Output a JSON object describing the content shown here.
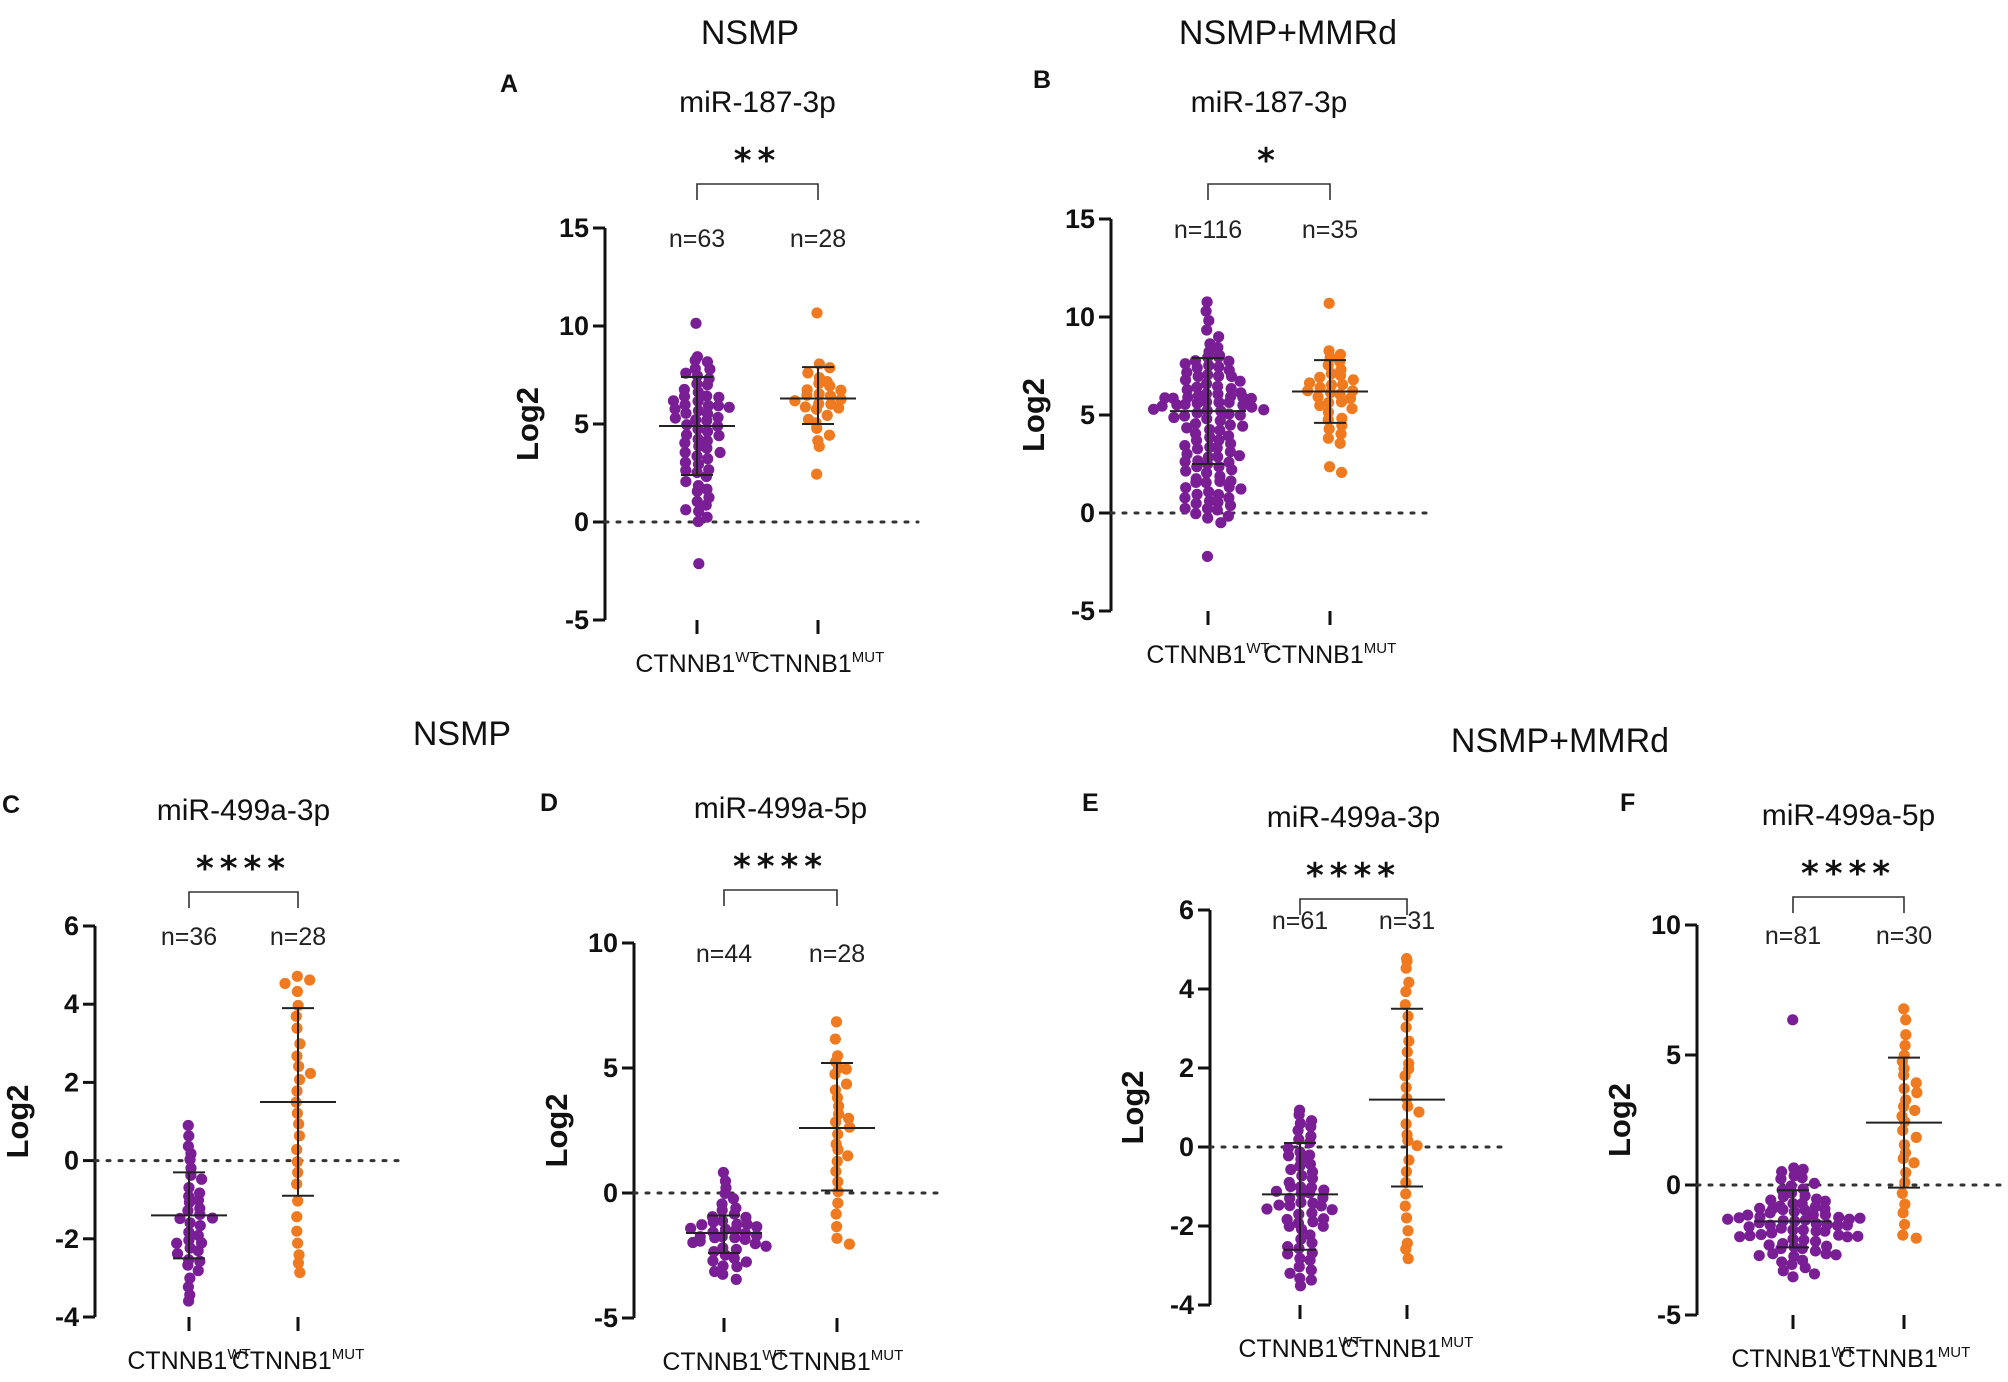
{
  "figure": {
    "section_titles": [
      "NSMP",
      "NSMP+MMRd",
      "NSMP",
      "NSMP+MMRd"
    ],
    "colors": {
      "wt": "#7a1e96",
      "mut": "#ef7a1f",
      "axis": "#111111"
    }
  },
  "chart_data": [
    {
      "type": "scatter",
      "panel": "A",
      "title": "miR-187-3p",
      "ylabel": "Log2",
      "ylim": [
        -5,
        15
      ],
      "yticks": [
        -5,
        0,
        5,
        10,
        15
      ],
      "grid": false,
      "reference_line": 0,
      "categories": [
        "CTNNB1",
        "CTNNB1"
      ],
      "category_superscripts": [
        "WT",
        "MUT"
      ],
      "n_labels": [
        "n=63",
        "n=28"
      ],
      "significance": "**",
      "series": [
        {
          "name": "CTNNB1 WT",
          "color": "#7a1e96",
          "mean": 4.9,
          "sd_low": 2.4,
          "sd_high": 7.4,
          "values": [
            10.2,
            -2.2,
            8.5,
            8.3,
            8.1,
            7.9,
            7.8,
            7.6,
            7.5,
            7.3,
            7.1,
            7.0,
            6.8,
            6.6,
            6.4,
            6.3,
            6.2,
            6.1,
            6.0,
            6.0,
            5.9,
            5.8,
            5.7,
            5.6,
            5.5,
            5.4,
            5.3,
            5.2,
            5.1,
            5.0,
            4.9,
            4.8,
            4.6,
            4.5,
            4.3,
            4.2,
            4.0,
            3.9,
            3.7,
            3.5,
            3.4,
            3.2,
            3.0,
            2.9,
            2.7,
            2.5,
            2.3,
            2.1,
            1.9,
            1.7,
            1.5,
            1.3,
            1.1,
            0.9,
            0.7,
            0.5,
            0.3,
            0.1,
            6.5,
            5.8,
            4.4,
            3.6,
            2.6
          ]
        },
        {
          "name": "CTNNB1 MUT",
          "color": "#ef7a1f",
          "mean": 6.3,
          "sd_low": 5.0,
          "sd_high": 7.9,
          "values": [
            10.7,
            2.4,
            8.0,
            7.8,
            7.6,
            7.4,
            7.2,
            7.0,
            6.9,
            6.8,
            6.7,
            6.6,
            6.5,
            6.4,
            6.3,
            6.2,
            6.1,
            6.0,
            5.9,
            5.8,
            5.7,
            5.5,
            5.3,
            5.0,
            4.8,
            4.5,
            4.2,
            3.8
          ]
        }
      ]
    },
    {
      "type": "scatter",
      "panel": "B",
      "title": "miR-187-3p",
      "ylabel": "Log2",
      "ylim": [
        -5,
        15
      ],
      "yticks": [
        -5,
        0,
        5,
        10,
        15
      ],
      "grid": false,
      "reference_line": 0,
      "categories": [
        "CTNNB1",
        "CTNNB1"
      ],
      "category_superscripts": [
        "WT",
        "MUT"
      ],
      "n_labels": [
        "n=116",
        "n=35"
      ],
      "significance": "*",
      "series": [
        {
          "name": "CTNNB1 WT",
          "color": "#7a1e96",
          "mean": 5.2,
          "sd_low": 2.5,
          "sd_high": 7.9,
          "values": [
            10.8,
            -2.2,
            10.3,
            9.8,
            9.4,
            9.0,
            8.7,
            8.5,
            8.3,
            8.1,
            8.0,
            7.9,
            7.8,
            7.7,
            7.6,
            7.5,
            7.4,
            7.3,
            7.2,
            7.1,
            7.0,
            6.9,
            6.8,
            6.7,
            6.6,
            6.5,
            6.4,
            6.3,
            6.2,
            6.1,
            6.0,
            6.0,
            5.9,
            5.9,
            5.8,
            5.8,
            5.7,
            5.7,
            5.6,
            5.6,
            5.5,
            5.5,
            5.4,
            5.4,
            5.3,
            5.3,
            5.2,
            5.2,
            5.1,
            5.1,
            5.0,
            5.0,
            4.9,
            4.8,
            4.7,
            4.6,
            4.5,
            4.4,
            4.3,
            4.2,
            4.1,
            4.0,
            3.9,
            3.8,
            3.7,
            3.6,
            3.5,
            3.4,
            3.3,
            3.2,
            3.1,
            3.0,
            2.9,
            2.8,
            2.7,
            2.6,
            2.5,
            2.4,
            2.3,
            2.2,
            2.1,
            2.0,
            1.9,
            1.8,
            1.7,
            1.6,
            1.5,
            1.4,
            1.3,
            1.2,
            1.1,
            1.0,
            0.9,
            0.8,
            0.7,
            0.6,
            0.5,
            0.4,
            0.3,
            0.2,
            0.1,
            0.0,
            -0.1,
            -0.3,
            -0.5,
            6.1,
            5.9,
            6.3,
            5.6,
            7.0,
            7.4,
            3.0,
            2.6,
            1.6,
            0.6,
            4.4
          ]
        },
        {
          "name": "CTNNB1 MUT",
          "color": "#ef7a1f",
          "mean": 6.2,
          "sd_low": 4.6,
          "sd_high": 7.8,
          "values": [
            10.7,
            2.1,
            2.4,
            3.5,
            8.3,
            8.1,
            7.9,
            7.7,
            7.5,
            7.3,
            7.1,
            7.0,
            6.9,
            6.8,
            6.7,
            6.6,
            6.5,
            6.4,
            6.3,
            6.2,
            6.1,
            6.0,
            5.9,
            5.8,
            5.7,
            5.6,
            5.5,
            5.3,
            5.1,
            4.9,
            4.7,
            4.5,
            4.3,
            4.0,
            3.8
          ]
        }
      ]
    },
    {
      "type": "scatter",
      "panel": "C",
      "title": "miR-499a-3p",
      "ylabel": "Log2",
      "ylim": [
        -4,
        6
      ],
      "yticks": [
        -4,
        -2,
        0,
        2,
        4,
        6
      ],
      "grid": false,
      "reference_line": 0,
      "categories": [
        "CTNNB1",
        "CTNNB1"
      ],
      "category_superscripts": [
        "WT",
        "MUT"
      ],
      "n_labels": [
        "n=36",
        "n=28"
      ],
      "significance": "****",
      "series": [
        {
          "name": "CTNNB1 WT",
          "color": "#7a1e96",
          "mean": -1.4,
          "sd_low": -2.5,
          "sd_high": -0.3,
          "values": [
            0.9,
            0.6,
            0.4,
            0.2,
            0.0,
            -0.2,
            -0.4,
            -0.5,
            -0.7,
            -0.8,
            -0.9,
            -1.0,
            -1.1,
            -1.2,
            -1.3,
            -1.4,
            -1.5,
            -1.6,
            -1.7,
            -1.8,
            -1.9,
            -2.0,
            -2.1,
            -2.2,
            -2.3,
            -2.4,
            -2.5,
            -2.6,
            -2.7,
            -2.8,
            -3.0,
            -3.2,
            -3.4,
            -3.6,
            -1.5,
            -2.1
          ]
        },
        {
          "name": "CTNNB1 MUT",
          "color": "#ef7a1f",
          "mean": 1.5,
          "sd_low": -0.9,
          "sd_high": 3.9,
          "values": [
            4.7,
            4.6,
            4.5,
            4.3,
            4.0,
            3.7,
            3.4,
            3.0,
            2.7,
            2.4,
            2.1,
            1.8,
            1.5,
            1.2,
            0.9,
            0.6,
            0.3,
            0.0,
            -0.3,
            -0.6,
            -1.0,
            -1.4,
            -1.8,
            -2.1,
            -2.4,
            -2.6,
            -2.9,
            2.2
          ]
        }
      ]
    },
    {
      "type": "scatter",
      "panel": "D",
      "title": "miR-499a-5p",
      "ylabel": "Log2",
      "ylim": [
        -5,
        10
      ],
      "yticks": [
        -5,
        0,
        5,
        10
      ],
      "grid": false,
      "reference_line": 0,
      "categories": [
        "CTNNB1",
        "CTNNB1"
      ],
      "category_superscripts": [
        "WT",
        "MUT"
      ],
      "n_labels": [
        "n=44",
        "n=28"
      ],
      "significance": "****",
      "series": [
        {
          "name": "CTNNB1 WT",
          "color": "#7a1e96",
          "mean": -1.6,
          "sd_low": -2.4,
          "sd_high": -0.9,
          "values": [
            0.8,
            0.5,
            0.2,
            0.0,
            -0.2,
            -0.4,
            -0.6,
            -0.7,
            -0.8,
            -0.9,
            -1.0,
            -1.1,
            -1.2,
            -1.3,
            -1.3,
            -1.4,
            -1.4,
            -1.5,
            -1.5,
            -1.6,
            -1.6,
            -1.7,
            -1.7,
            -1.8,
            -1.8,
            -1.9,
            -1.9,
            -2.0,
            -2.0,
            -2.1,
            -2.2,
            -2.3,
            -2.4,
            -2.5,
            -2.6,
            -2.7,
            -2.8,
            -2.9,
            -3.0,
            -3.1,
            -3.3,
            -3.5,
            -1.2,
            -1.8
          ]
        },
        {
          "name": "CTNNB1 MUT",
          "color": "#ef7a1f",
          "mean": 2.6,
          "sd_low": 0.1,
          "sd_high": 5.2,
          "values": [
            6.8,
            6.2,
            5.5,
            5.2,
            5.0,
            4.7,
            4.4,
            4.1,
            3.8,
            3.5,
            3.2,
            2.9,
            2.6,
            2.3,
            2.0,
            1.7,
            1.3,
            0.9,
            0.5,
            0.1,
            -0.4,
            -0.9,
            -1.4,
            -1.8,
            -2.0,
            3.0,
            4.9,
            1.5
          ]
        }
      ]
    },
    {
      "type": "scatter",
      "panel": "E",
      "title": "miR-499a-3p",
      "ylabel": "Log2",
      "ylim": [
        -4,
        6
      ],
      "yticks": [
        -4,
        -2,
        0,
        2,
        4,
        6
      ],
      "grid": false,
      "reference_line": 0,
      "categories": [
        "CTNNB1",
        "CTNNB1"
      ],
      "category_superscripts": [
        "WT",
        "MUT"
      ],
      "n_labels": [
        "n=61",
        "n=31"
      ],
      "significance": "****",
      "series": [
        {
          "name": "CTNNB1 WT",
          "color": "#7a1e96",
          "mean": -1.2,
          "sd_low": -2.6,
          "sd_high": 0.1,
          "values": [
            0.9,
            0.8,
            0.7,
            0.6,
            0.5,
            0.4,
            0.3,
            0.2,
            0.1,
            0.0,
            -0.1,
            -0.2,
            -0.3,
            -0.4,
            -0.5,
            -0.6,
            -0.7,
            -0.8,
            -0.9,
            -1.0,
            -1.0,
            -1.1,
            -1.1,
            -1.2,
            -1.2,
            -1.3,
            -1.3,
            -1.4,
            -1.4,
            -1.5,
            -1.5,
            -1.6,
            -1.6,
            -1.7,
            -1.7,
            -1.8,
            -1.9,
            -2.0,
            -2.1,
            -2.2,
            -2.3,
            -2.4,
            -2.5,
            -2.6,
            -2.7,
            -2.8,
            -2.9,
            -3.0,
            -3.1,
            -3.2,
            -3.3,
            -3.4,
            -3.5,
            -1.8,
            -0.6,
            -2.0,
            -1.5,
            -0.2,
            -2.7,
            -1.0,
            -1.9
          ]
        },
        {
          "name": "CTNNB1 MUT",
          "color": "#ef7a1f",
          "mean": 1.2,
          "sd_low": -1.0,
          "sd_high": 3.5,
          "values": [
            4.8,
            4.7,
            4.5,
            4.2,
            3.9,
            3.6,
            3.3,
            3.0,
            2.7,
            2.4,
            2.1,
            1.8,
            1.5,
            1.2,
            0.9,
            0.6,
            0.3,
            0.0,
            -0.3,
            -0.6,
            -0.9,
            -1.2,
            -1.5,
            -1.8,
            -2.1,
            -2.4,
            -2.6,
            -2.8,
            2.0,
            1.0,
            0.2
          ]
        }
      ]
    },
    {
      "type": "scatter",
      "panel": "F",
      "title": "miR-499a-5p",
      "ylabel": "Log2",
      "ylim": [
        -5,
        10
      ],
      "yticks": [
        -5,
        0,
        5,
        10
      ],
      "grid": false,
      "reference_line": 0,
      "categories": [
        "CTNNB1",
        "CTNNB1"
      ],
      "category_superscripts": [
        "WT",
        "MUT"
      ],
      "n_labels": [
        "n=81",
        "n=30"
      ],
      "significance": "****",
      "series": [
        {
          "name": "CTNNB1 WT",
          "color": "#7a1e96",
          "mean": -1.4,
          "sd_low": -2.4,
          "sd_high": -0.2,
          "values": [
            6.4,
            0.7,
            0.6,
            0.5,
            0.4,
            0.3,
            0.2,
            0.1,
            0.0,
            -0.1,
            -0.2,
            -0.3,
            -0.4,
            -0.5,
            -0.5,
            -0.6,
            -0.6,
            -0.7,
            -0.7,
            -0.8,
            -0.8,
            -0.9,
            -0.9,
            -1.0,
            -1.0,
            -1.0,
            -1.1,
            -1.1,
            -1.1,
            -1.2,
            -1.2,
            -1.2,
            -1.3,
            -1.3,
            -1.3,
            -1.4,
            -1.4,
            -1.4,
            -1.5,
            -1.5,
            -1.5,
            -1.6,
            -1.6,
            -1.6,
            -1.7,
            -1.7,
            -1.7,
            -1.8,
            -1.8,
            -1.8,
            -1.9,
            -1.9,
            -2.0,
            -2.0,
            -2.1,
            -2.1,
            -2.2,
            -2.2,
            -2.3,
            -2.3,
            -2.4,
            -2.4,
            -2.5,
            -2.5,
            -2.6,
            -2.6,
            -2.7,
            -2.7,
            -2.8,
            -2.9,
            -3.0,
            -3.1,
            -3.2,
            -3.3,
            -3.4,
            -3.5,
            -1.5,
            -1.3,
            -1.9,
            -2.0,
            -0.9
          ]
        },
        {
          "name": "CTNNB1 MUT",
          "color": "#ef7a1f",
          "mean": 2.4,
          "sd_low": -0.1,
          "sd_high": 4.9,
          "values": [
            6.8,
            6.3,
            5.8,
            5.4,
            5.0,
            4.8,
            4.5,
            4.2,
            3.9,
            3.6,
            3.3,
            3.0,
            2.7,
            2.4,
            2.1,
            1.8,
            1.5,
            1.2,
            0.9,
            0.5,
            0.1,
            -0.3,
            -0.7,
            -1.1,
            -1.5,
            -1.9,
            -2.0,
            3.7,
            2.9,
            1.0
          ]
        }
      ]
    }
  ]
}
